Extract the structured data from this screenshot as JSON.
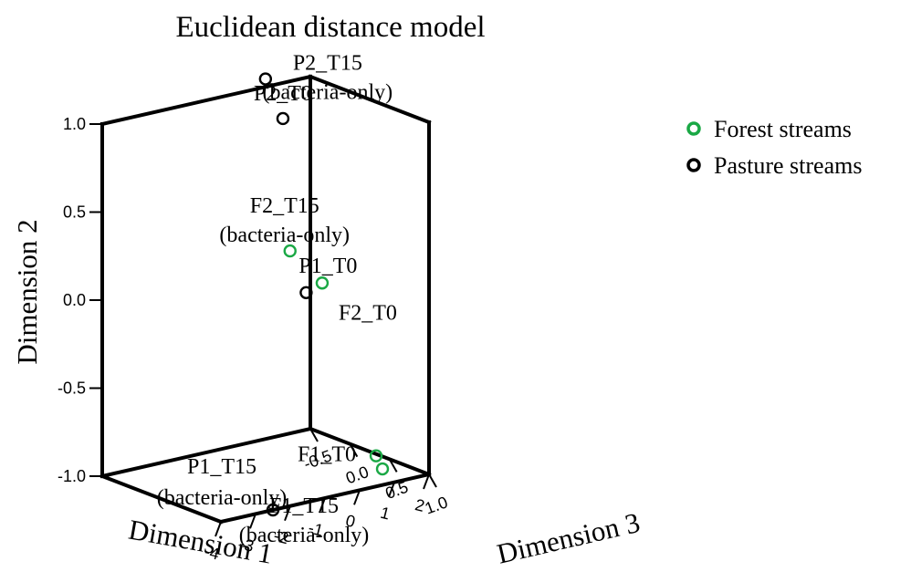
{
  "chart_data": {
    "type": "scatter",
    "projection": "3d",
    "title": "Euclidean distance model",
    "xlabel": "Dimension 1",
    "ylabel": "Dimension 2",
    "zlabel": "Dimension 3",
    "xlim": [
      -4,
      2
    ],
    "ylim": [
      -1,
      1
    ],
    "zlim": [
      -0.5,
      1
    ],
    "xticks": [
      "-4",
      "-3",
      "-2",
      "-1",
      "0",
      "1",
      "2"
    ],
    "yticks": [
      "-1.0",
      "-0.5",
      "0.0",
      "0.5",
      "1.0"
    ],
    "zticks": [
      "1.0",
      "0.5",
      "0.0",
      "-0.5"
    ],
    "legend_position": "top-right",
    "series": [
      {
        "name": "Forest streams",
        "color": "#1aa845",
        "points": [
          {
            "label": "F2_T15",
            "sublabel": "(bacteria-only)",
            "x": 1.3,
            "y": 0.05,
            "z": -0.45
          },
          {
            "label": "F2_T0",
            "sublabel": "",
            "x": 1.2,
            "y": -0.05,
            "z": 0.0
          },
          {
            "label": "F1_T0",
            "sublabel": "",
            "x": 1.5,
            "y": -0.95,
            "z": 0.55
          },
          {
            "label": "F1_T15",
            "sublabel": "(bacteria-only)",
            "x": 1.0,
            "y": -0.95,
            "z": 0.85
          }
        ]
      },
      {
        "name": "Pasture streams",
        "color": "#000000",
        "points": [
          {
            "label": "P2_T0",
            "sublabel": "",
            "x": -1.3,
            "y": 1.1,
            "z": 0.6
          },
          {
            "label": "P2_T15",
            "sublabel": "(bacteria-only)",
            "x": 0.25,
            "y": 1.1,
            "z": -0.3
          },
          {
            "label": "P1_T0",
            "sublabel": "",
            "x": -1.2,
            "y": 0.15,
            "z": 0.85
          },
          {
            "label": "P1_T15",
            "sublabel": "(bacteria-only)",
            "x": -2.5,
            "y": -1.0,
            "z": 1.0
          }
        ]
      }
    ]
  }
}
